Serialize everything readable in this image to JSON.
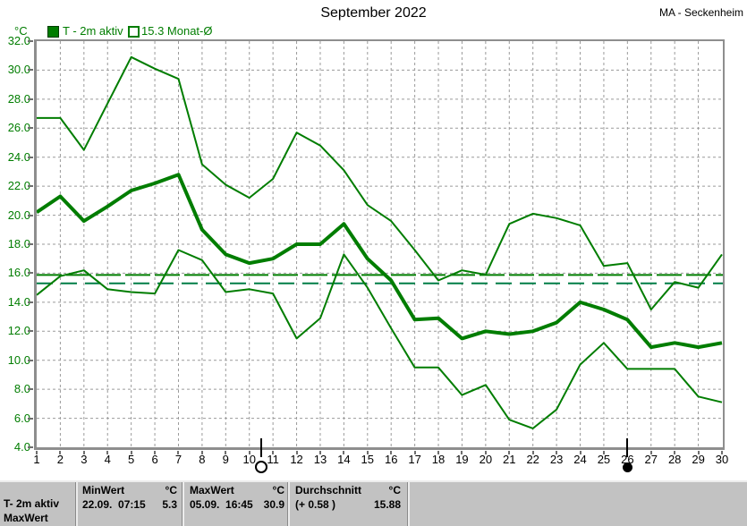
{
  "header": {
    "title": "September 2022",
    "station": "MA - Seckenheim"
  },
  "legend": {
    "unit": "°C",
    "active_series_label": "T - 2m aktiv",
    "month_average_label": "15.3 Monat-Ø"
  },
  "chart_data": {
    "type": "line",
    "title": "September 2022",
    "xlabel": "",
    "ylabel": "°C",
    "x": [
      1,
      2,
      3,
      4,
      5,
      6,
      7,
      8,
      9,
      10,
      11,
      12,
      13,
      14,
      15,
      16,
      17,
      18,
      19,
      20,
      21,
      22,
      23,
      24,
      25,
      26,
      27,
      28,
      29,
      30
    ],
    "ylim": [
      4,
      32
    ],
    "ytick_step": 2,
    "grid": true,
    "series": [
      {
        "name": "daily-max",
        "values": [
          26.7,
          26.7,
          24.5,
          27.7,
          30.9,
          30.1,
          29.4,
          23.5,
          22.1,
          21.2,
          22.5,
          25.7,
          24.8,
          23.1,
          20.7,
          19.6,
          17.6,
          15.5,
          16.2,
          15.9,
          19.4,
          20.1,
          19.8,
          19.3,
          16.5,
          16.7,
          13.5,
          15.4,
          15.0,
          17.3
        ],
        "width": 2
      },
      {
        "name": "daily-mean",
        "values": [
          20.2,
          21.3,
          19.6,
          20.6,
          21.7,
          22.2,
          22.8,
          19.0,
          17.3,
          16.7,
          17.0,
          18.0,
          18.0,
          19.4,
          17.0,
          15.5,
          12.8,
          12.9,
          11.5,
          12.0,
          11.8,
          12.0,
          12.6,
          14.0,
          13.5,
          12.8,
          10.9,
          11.2,
          10.9,
          11.2
        ],
        "width": 4
      },
      {
        "name": "daily-min",
        "values": [
          14.5,
          15.8,
          16.2,
          14.9,
          14.7,
          14.6,
          17.6,
          16.9,
          14.7,
          14.9,
          14.6,
          11.5,
          12.9,
          17.3,
          15.0,
          12.2,
          9.5,
          9.5,
          7.6,
          8.3,
          5.9,
          5.3,
          6.6,
          9.7,
          11.2,
          9.4,
          9.4,
          9.4,
          7.5,
          7.1
        ],
        "width": 2
      }
    ],
    "reference_lines": [
      {
        "name": "month-mean-actual",
        "value": 15.88,
        "color": "#007d00",
        "dash": "28 5"
      },
      {
        "name": "month-mean-longterm",
        "value": 15.3,
        "color": "#007d46",
        "dash": "18 9"
      }
    ],
    "moon_markers": [
      {
        "day": 10.5,
        "phase": "full-moon"
      },
      {
        "day": 26,
        "phase": "new-moon"
      }
    ],
    "colors": {
      "line": "#007d00",
      "grid": "#9a9a9a",
      "axis": "#8e8e8e",
      "y_labels": "#007d00",
      "x_labels": "#000000"
    },
    "legend_entries": [
      "T - 2m aktiv",
      "15.3 Monat-Ø"
    ]
  },
  "stats_bar": {
    "series_label_line1": "T- 2m aktiv",
    "series_label_line2": "MaxWert",
    "min": {
      "header": "MinWert",
      "unit": "°C",
      "datetime": "22.09.  07:15",
      "value": "5.3"
    },
    "max": {
      "header": "MaxWert",
      "unit": "°C",
      "datetime": "05.09.  16:45",
      "value": "30.9"
    },
    "avg": {
      "header": "Durchschnitt",
      "unit": "°C",
      "anomaly": "(+ 0.58 )",
      "value": "15.88"
    }
  }
}
